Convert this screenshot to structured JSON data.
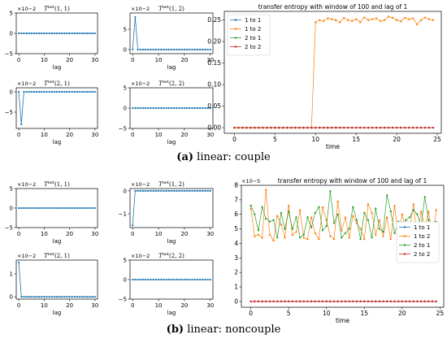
{
  "captions": {
    "a": {
      "letter": "(a)",
      "text": "linear: couple"
    },
    "b": {
      "letter": "(b)",
      "text": "linear: noncouple"
    }
  },
  "colors": {
    "s11": "#1f77b4",
    "s12": "#ff7f0e",
    "s21": "#2ca02c",
    "s22": "#d62728"
  },
  "chart_data": [
    {
      "id": "a_t11",
      "type": "line",
      "title": "Tnet(1,1)",
      "title_main": "T",
      "title_sup": "net",
      "title_args": "(1, 1)",
      "multiplier": "×10−2",
      "xlabel": "lag",
      "ylabel": "",
      "xlim": [
        -1,
        31
      ],
      "ylim": [
        -5,
        5
      ],
      "xticks": [
        0,
        10,
        20,
        30
      ],
      "yticks": [
        -5,
        0,
        5
      ],
      "spike_lag": null,
      "spike_value": 0
    },
    {
      "id": "a_t12",
      "type": "line",
      "title": "Tnet(1,2)",
      "title_main": "T",
      "title_sup": "net",
      "title_args": "(1, 2)",
      "multiplier": "×10−2",
      "xlabel": "lag",
      "ylabel": "",
      "xlim": [
        -1,
        31
      ],
      "ylim": [
        -1,
        9
      ],
      "xticks": [
        0,
        10,
        20,
        30
      ],
      "yticks": [
        0,
        5
      ],
      "spike_lag": 1,
      "spike_value": 8
    },
    {
      "id": "a_t21",
      "type": "line",
      "title": "Tnet(2,1)",
      "title_main": "T",
      "title_sup": "net",
      "title_args": "(2, 1)",
      "multiplier": "×10−2",
      "xlabel": "lag",
      "ylabel": "",
      "xlim": [
        -1,
        31
      ],
      "ylim": [
        -9,
        1
      ],
      "xticks": [
        0,
        10,
        20,
        30
      ],
      "yticks": [
        -5,
        0
      ],
      "spike_lag": 1,
      "spike_value": -8
    },
    {
      "id": "a_t22",
      "type": "line",
      "title": "Tnet(2,2)",
      "title_main": "T",
      "title_sup": "net",
      "title_args": "(2, 2)",
      "multiplier": "×10−2",
      "xlabel": "lag",
      "ylabel": "",
      "xlim": [
        -1,
        31
      ],
      "ylim": [
        -5,
        5
      ],
      "xticks": [
        0,
        10,
        20,
        30
      ],
      "yticks": [
        -5,
        0,
        5
      ],
      "spike_lag": null,
      "spike_value": 0
    },
    {
      "id": "a_te",
      "type": "line",
      "title": "transfer entropy with window of 100 and lag of 1",
      "multiplier": "",
      "xlabel": "time",
      "ylabel": "",
      "xlim": [
        -1.25,
        25.5
      ],
      "ylim": [
        -0.013,
        0.27
      ],
      "xticks": [
        0,
        5,
        10,
        15,
        20,
        25
      ],
      "yticks": [
        0.0,
        0.05,
        0.1,
        0.15,
        0.2,
        0.25
      ],
      "ytick_labels": [
        "0.00",
        "0.05",
        "0.10",
        "0.15",
        "0.20",
        "0.25"
      ],
      "legend": [
        "1 to 1",
        "1 to 2",
        "2 to 1",
        "2 to 2"
      ],
      "legend_position": "upper-left",
      "x": [
        0,
        0.5,
        1,
        1.5,
        2,
        2.5,
        3,
        3.5,
        4,
        4.5,
        5,
        5.5,
        6,
        6.5,
        7,
        7.5,
        8,
        8.5,
        9,
        9.5,
        10,
        10.5,
        11,
        11.5,
        12,
        12.5,
        13,
        13.5,
        14,
        14.5,
        15,
        15.5,
        16,
        16.5,
        17,
        17.5,
        18,
        18.5,
        19,
        19.5,
        20,
        20.5,
        21,
        21.5,
        22,
        22.5,
        23,
        23.5,
        24,
        24.5
      ],
      "series": [
        {
          "name": "1 to 1",
          "values": [
            0,
            0,
            0,
            0,
            0,
            0,
            0,
            0,
            0,
            0,
            0,
            0,
            0,
            0,
            0,
            0,
            0,
            0,
            0,
            0,
            0,
            0,
            0,
            0,
            0,
            0,
            0,
            0,
            0,
            0,
            0,
            0,
            0,
            0,
            0,
            0,
            0,
            0,
            0,
            0,
            0,
            0,
            0,
            0,
            0,
            0,
            0,
            0,
            0,
            0
          ]
        },
        {
          "name": "1 to 2",
          "values": [
            0,
            0,
            0,
            0,
            0,
            0,
            0,
            0,
            0,
            0,
            0,
            0,
            0,
            0,
            0,
            0,
            0,
            0,
            0,
            0,
            0.245,
            0.25,
            0.248,
            0.254,
            0.252,
            0.25,
            0.245,
            0.255,
            0.25,
            0.248,
            0.252,
            0.245,
            0.256,
            0.25,
            0.252,
            0.254,
            0.248,
            0.25,
            0.258,
            0.255,
            0.25,
            0.247,
            0.255,
            0.252,
            0.254,
            0.24,
            0.25,
            0.256,
            0.252,
            0.25
          ]
        },
        {
          "name": "2 to 1",
          "values": [
            0,
            0,
            0,
            0,
            0,
            0,
            0,
            0,
            0,
            0,
            0,
            0,
            0,
            0,
            0,
            0,
            0,
            0,
            0,
            0,
            0,
            0,
            0,
            0,
            0,
            0,
            0,
            0,
            0,
            0,
            0,
            0,
            0,
            0,
            0,
            0,
            0,
            0,
            0,
            0,
            0,
            0,
            0,
            0,
            0,
            0,
            0,
            0,
            0,
            0
          ]
        },
        {
          "name": "2 to 2",
          "values": [
            0,
            0,
            0,
            0,
            0,
            0,
            0,
            0,
            0,
            0,
            0,
            0,
            0,
            0,
            0,
            0,
            0,
            0,
            0,
            0,
            0,
            0,
            0,
            0,
            0,
            0,
            0,
            0,
            0,
            0,
            0,
            0,
            0,
            0,
            0,
            0,
            0,
            0,
            0,
            0,
            0,
            0,
            0,
            0,
            0,
            0,
            0,
            0,
            0,
            0
          ]
        }
      ]
    },
    {
      "id": "b_t11",
      "type": "line",
      "title": "Tnet(1,1)",
      "title_main": "T",
      "title_sup": "net",
      "title_args": "(1, 1)",
      "multiplier": "×10−2",
      "xlabel": "lag",
      "ylabel": "",
      "xlim": [
        -1,
        31
      ],
      "ylim": [
        -5,
        5
      ],
      "xticks": [
        0,
        10,
        20,
        30
      ],
      "yticks": [
        -5,
        0,
        5
      ],
      "spike_lag": null,
      "spike_value": 0
    },
    {
      "id": "b_t12",
      "type": "line",
      "title": "Tnet(1,2)",
      "title_main": "T",
      "title_sup": "net",
      "title_args": "(1, 2)",
      "multiplier": "×10−2",
      "xlabel": "lag",
      "ylabel": "",
      "xlim": [
        -1,
        31
      ],
      "ylim": [
        -1.6,
        0.1
      ],
      "xticks": [
        0,
        10,
        20,
        30
      ],
      "yticks": [
        -1,
        0
      ],
      "spike_lag": 0,
      "spike_value": -1.5
    },
    {
      "id": "b_t21",
      "type": "line",
      "title": "Tnet(2,1)",
      "title_main": "T",
      "title_sup": "net",
      "title_args": "(2, 1)",
      "multiplier": "×10−2",
      "xlabel": "lag",
      "ylabel": "",
      "xlim": [
        -1,
        31
      ],
      "ylim": [
        -0.1,
        1.6
      ],
      "xticks": [
        0,
        10,
        20,
        30
      ],
      "yticks": [
        0,
        1
      ],
      "spike_lag": 0,
      "spike_value": 1.5
    },
    {
      "id": "b_t22",
      "type": "line",
      "title": "Tnet(2,2)",
      "title_main": "T",
      "title_sup": "net",
      "title_args": "(2, 2)",
      "multiplier": "×10−2",
      "xlabel": "lag",
      "ylabel": "",
      "xlim": [
        -1,
        31
      ],
      "ylim": [
        -5,
        5
      ],
      "xticks": [
        0,
        10,
        20,
        30
      ],
      "yticks": [
        -5,
        0,
        5
      ],
      "spike_lag": null,
      "spike_value": 0
    },
    {
      "id": "b_te",
      "type": "line",
      "title": "transfer entropy with window of 100 and lag of 1",
      "multiplier": "×10−5",
      "xlabel": "time",
      "ylabel": "",
      "xlim": [
        -1.25,
        25.5
      ],
      "ylim": [
        -0.4,
        8
      ],
      "xticks": [
        0,
        5,
        10,
        15,
        20,
        25
      ],
      "yticks": [
        0,
        1,
        2,
        3,
        4,
        5,
        6,
        7,
        8
      ],
      "legend": [
        "1 to 1",
        "1 to 2",
        "2 to 1",
        "2 to 2"
      ],
      "legend_position": "right",
      "x": [
        0,
        0.5,
        1,
        1.5,
        2,
        2.5,
        3,
        3.5,
        4,
        4.5,
        5,
        5.5,
        6,
        6.5,
        7,
        7.5,
        8,
        8.5,
        9,
        9.5,
        10,
        10.5,
        11,
        11.5,
        12,
        12.5,
        13,
        13.5,
        14,
        14.5,
        15,
        15.5,
        16,
        16.5,
        17,
        17.5,
        18,
        18.5,
        19,
        19.5,
        20,
        20.5,
        21,
        21.5,
        22,
        22.5,
        23,
        23.5,
        24,
        24.5
      ],
      "series": [
        {
          "name": "1 to 1",
          "values": [
            0,
            0,
            0,
            0,
            0,
            0,
            0,
            0,
            0,
            0,
            0,
            0,
            0,
            0,
            0,
            0,
            0,
            0,
            0,
            0,
            0,
            0,
            0,
            0,
            0,
            0,
            0,
            0,
            0,
            0,
            0,
            0,
            0,
            0,
            0,
            0,
            0,
            0,
            0,
            0,
            0,
            0,
            0,
            0,
            0,
            0,
            0,
            0,
            0,
            0
          ]
        },
        {
          "name": "1 to 2",
          "values": [
            6.4,
            4.5,
            4.6,
            4.4,
            7.7,
            4.6,
            4.2,
            5.9,
            5.3,
            4.4,
            6.6,
            4.6,
            4.8,
            6.3,
            4.4,
            4.3,
            5.8,
            4.7,
            4.3,
            6.5,
            5.6,
            4.5,
            4.3,
            6.9,
            4.9,
            5.8,
            4.4,
            5.9,
            5.4,
            5.0,
            4.3,
            6.7,
            6.1,
            4.6,
            5.6,
            4.5,
            5.8,
            4.3,
            6.6,
            4.4,
            6.0,
            4.9,
            5.0,
            6.7,
            4.3,
            6.2,
            5.1,
            6.2,
            4.5,
            6.3
          ]
        },
        {
          "name": "2 to 1",
          "values": [
            6.6,
            6.0,
            4.9,
            6.5,
            5.7,
            5.5,
            5.6,
            4.4,
            6.1,
            5.0,
            6.2,
            5.0,
            5.8,
            4.4,
            4.6,
            5.8,
            5.1,
            6.1,
            6.5,
            4.9,
            5.2,
            7.6,
            5.4,
            6.0,
            4.4,
            4.7,
            5.0,
            6.5,
            5.6,
            4.3,
            6.1,
            5.6,
            4.4,
            6.4,
            5.0,
            4.8,
            7.3,
            6.2,
            4.7,
            5.5,
            5.2,
            5.6,
            5.8,
            6.3,
            6.0,
            5.2,
            7.2,
            5.6,
            4.3,
            5.5
          ]
        },
        {
          "name": "2 to 2",
          "values": [
            0,
            0,
            0,
            0,
            0,
            0,
            0,
            0,
            0,
            0,
            0,
            0,
            0,
            0,
            0,
            0,
            0,
            0,
            0,
            0,
            0,
            0,
            0,
            0,
            0,
            0,
            0,
            0,
            0,
            0,
            0,
            0,
            0,
            0,
            0,
            0,
            0,
            0,
            0,
            0,
            0,
            0,
            0,
            0,
            0,
            0,
            0,
            0,
            0,
            0
          ]
        }
      ]
    }
  ]
}
